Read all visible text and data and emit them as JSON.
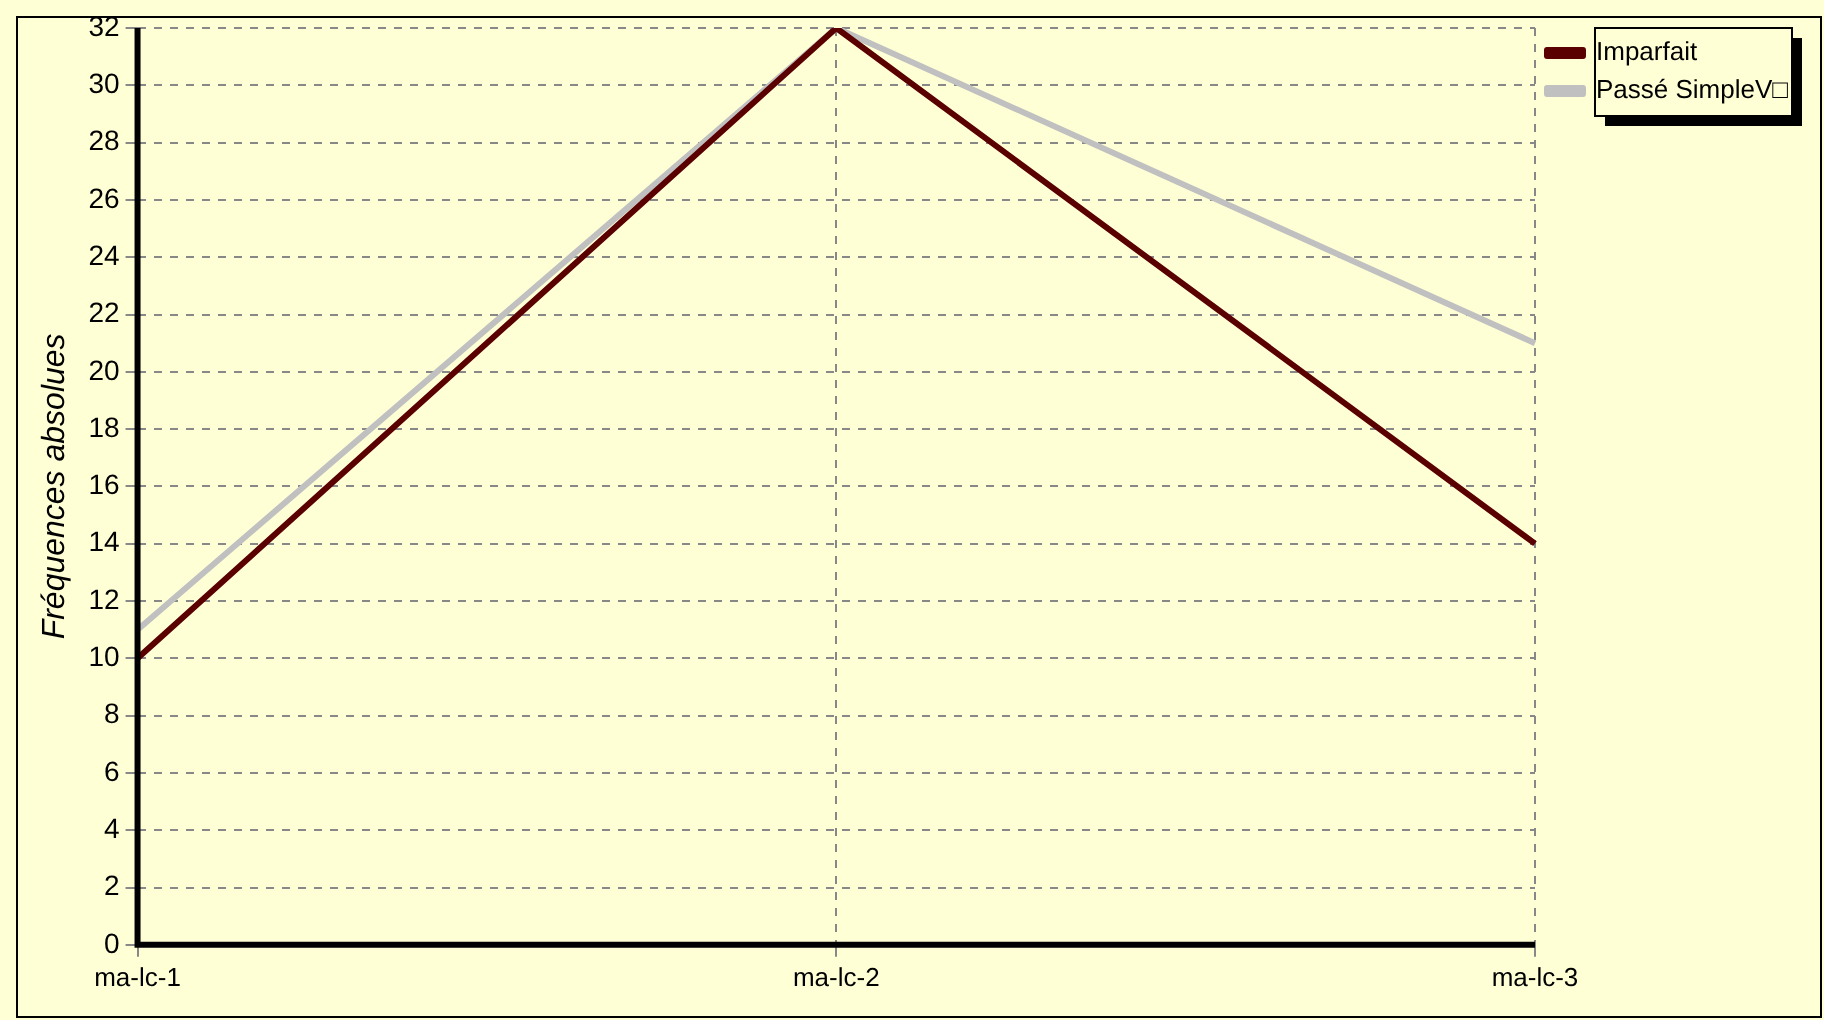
{
  "chart_data": {
    "type": "line",
    "ylabel": "Fréquences absolues",
    "categories": [
      "ma-lc-1",
      "ma-lc-2",
      "ma-lc-3"
    ],
    "series": [
      {
        "name": "Imparfait",
        "color": "#5a0000",
        "values": [
          10,
          32,
          14
        ]
      },
      {
        "name": "Passé SimpleV□",
        "color": "#c0c0c0",
        "values": [
          11,
          32,
          21
        ]
      }
    ],
    "ylim": [
      0,
      32
    ],
    "yticks": [
      0,
      2,
      4,
      6,
      8,
      10,
      12,
      14,
      16,
      18,
      20,
      22,
      24,
      26,
      28,
      30,
      32
    ],
    "grid": true,
    "legend": "top right",
    "marker": "none",
    "line_style": "solid"
  }
}
